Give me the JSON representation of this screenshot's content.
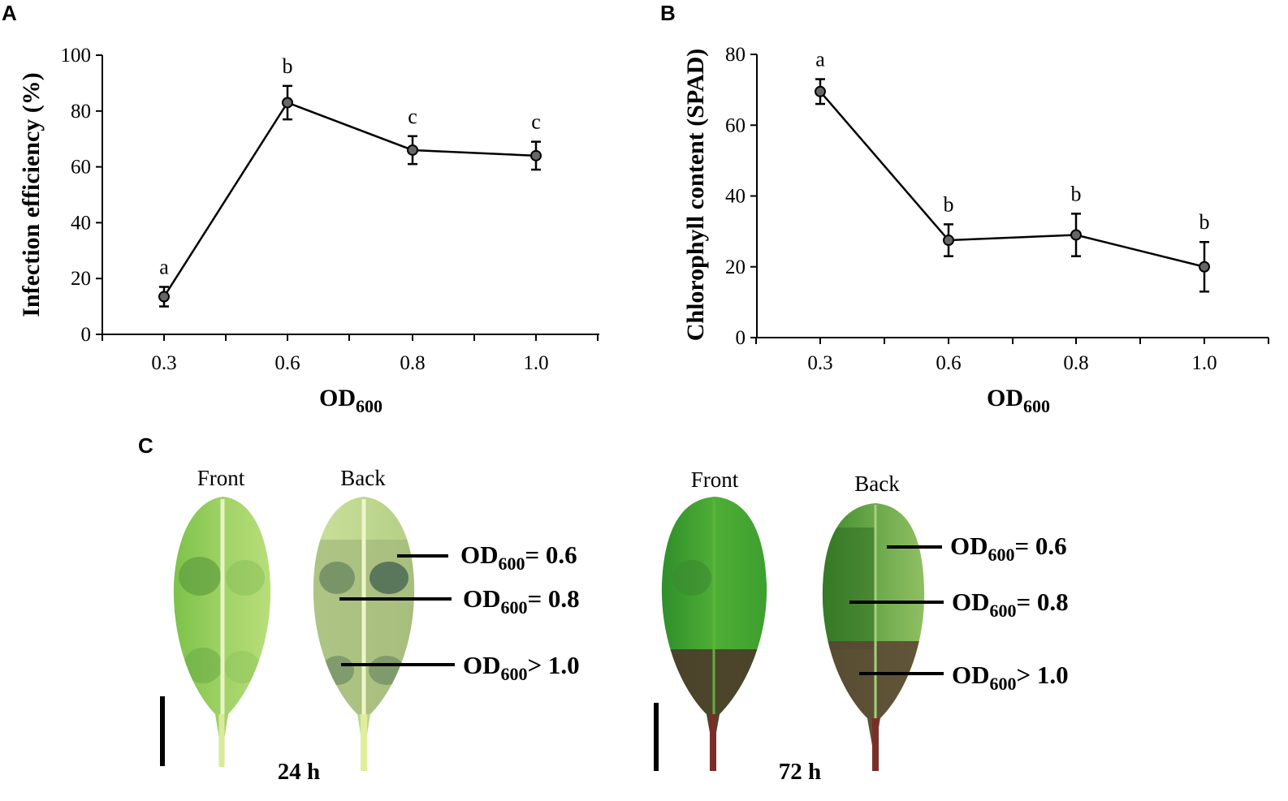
{
  "chart_data": [
    {
      "panel": "A",
      "type": "line",
      "categories": [
        "0.3",
        "0.6",
        "0.8",
        "1.0"
      ],
      "values": [
        13.5,
        83,
        66,
        64
      ],
      "errors": [
        3.5,
        6,
        5,
        5
      ],
      "significance": [
        "a",
        "b",
        "c",
        "c"
      ],
      "ylabel": "Infection efficiency (%)",
      "xlabel_main": "OD",
      "xlabel_sub": "600",
      "ylim": [
        0,
        100
      ],
      "yticks": [
        "0",
        "20",
        "40",
        "60",
        "80",
        "100"
      ]
    },
    {
      "panel": "B",
      "type": "line",
      "categories": [
        "0.3",
        "0.6",
        "0.8",
        "1.0"
      ],
      "values": [
        69.5,
        27.5,
        29,
        20
      ],
      "errors": [
        3.5,
        4.5,
        6,
        7
      ],
      "significance": [
        "a",
        "b",
        "b",
        "b"
      ],
      "ylabel": "Chlorophyll content (SPAD)",
      "xlabel_main": "OD",
      "xlabel_sub": "600",
      "ylim": [
        0,
        80
      ],
      "yticks": [
        "0",
        "20",
        "40",
        "60",
        "80"
      ]
    }
  ],
  "panel_c": {
    "label": "C",
    "groups": [
      {
        "time": "24 h",
        "front": "Front",
        "back": "Back",
        "annotations": [
          {
            "main": "OD",
            "sub": "600",
            "rel": "= 0.6"
          },
          {
            "main": "OD",
            "sub": "600",
            "rel": "= 0.8"
          },
          {
            "main": "OD",
            "sub": "600",
            "rel": "> 1.0"
          }
        ]
      },
      {
        "time": "72 h",
        "front": "Front",
        "back": "Back",
        "annotations": [
          {
            "main": "OD",
            "sub": "600",
            "rel": "= 0.6"
          },
          {
            "main": "OD",
            "sub": "600",
            "rel": "= 0.8"
          },
          {
            "main": "OD",
            "sub": "600",
            "rel": "> 1.0"
          }
        ]
      }
    ]
  },
  "colors": {
    "marker_fill": "#666666",
    "line": "#000000",
    "leaf_light": "#a6d86a",
    "leaf_dark": "#3f8f2c",
    "leaf_brown": "#4d3a2a"
  }
}
